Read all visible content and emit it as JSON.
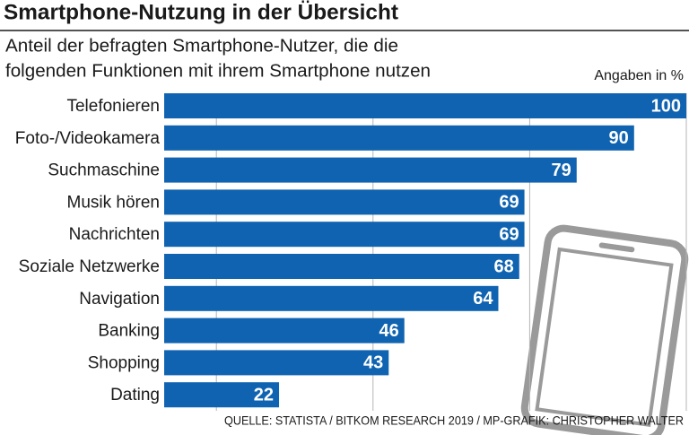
{
  "chart_data": {
    "type": "hbar",
    "title": "Smartphone-Nutzung in der Übersicht",
    "subtitle": [
      "Anteil der befragten Smartphone-Nutzer, die die",
      "folgenden Funktionen mit ihrem Smartphone nutzen"
    ],
    "unit_label": "Angaben in %",
    "source": "QUELLE: STATISTA / BITKOM RESEARCH 2019 / MP-GRAFIK: CHRISTOPHER WALTER",
    "categories": [
      "Telefonieren",
      "Foto-/Videokamera",
      "Suchmaschine",
      "Musik hören",
      "Nachrichten",
      "Soziale Netzwerke",
      "Navigation",
      "Banking",
      "Shopping",
      "Dating"
    ],
    "values": [
      100,
      90,
      79,
      69,
      69,
      68,
      64,
      46,
      43,
      22
    ],
    "color": "#1063b0",
    "xlim": [
      0,
      100
    ],
    "xticks": [
      10,
      40,
      70,
      100
    ],
    "grid": true
  }
}
